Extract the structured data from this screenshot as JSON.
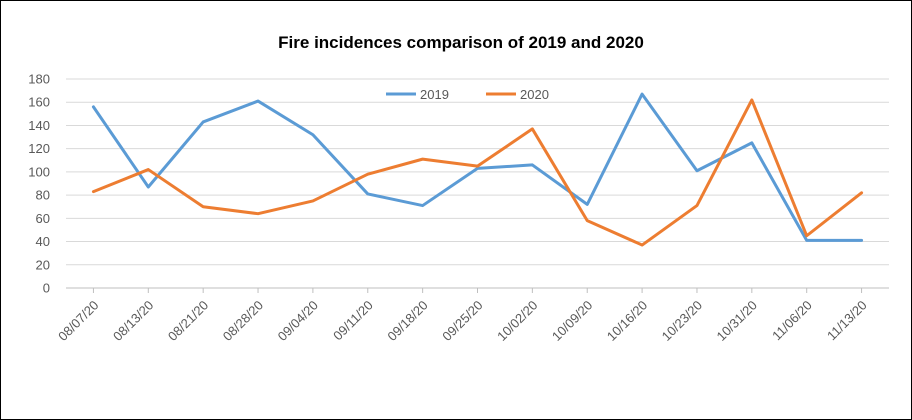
{
  "chart_data": {
    "type": "line",
    "title": "Fire incidences comparison of 2019 and 2020",
    "xlabel": "",
    "ylabel": "",
    "categories": [
      "08/07/20",
      "08/13/20",
      "08/21/20",
      "08/28/20",
      "09/04/20",
      "09/11/20",
      "09/18/20",
      "09/25/20",
      "10/02/20",
      "10/09/20",
      "10/16/20",
      "10/23/20",
      "10/31/20",
      "11/06/20",
      "11/13/20"
    ],
    "series": [
      {
        "name": "2019",
        "color": "#5B9BD5",
        "values": [
          156,
          87,
          143,
          161,
          132,
          81,
          71,
          103,
          106,
          72,
          167,
          101,
          125,
          41,
          41
        ]
      },
      {
        "name": "2020",
        "color": "#ED7D31",
        "values": [
          83,
          102,
          70,
          64,
          75,
          98,
          111,
          105,
          137,
          58,
          37,
          71,
          162,
          45,
          82
        ]
      }
    ],
    "ylim": [
      0,
      180
    ],
    "yticks": [
      0,
      20,
      40,
      60,
      80,
      100,
      120,
      140,
      160,
      180
    ],
    "grid": true,
    "legend_position": "top-center"
  }
}
